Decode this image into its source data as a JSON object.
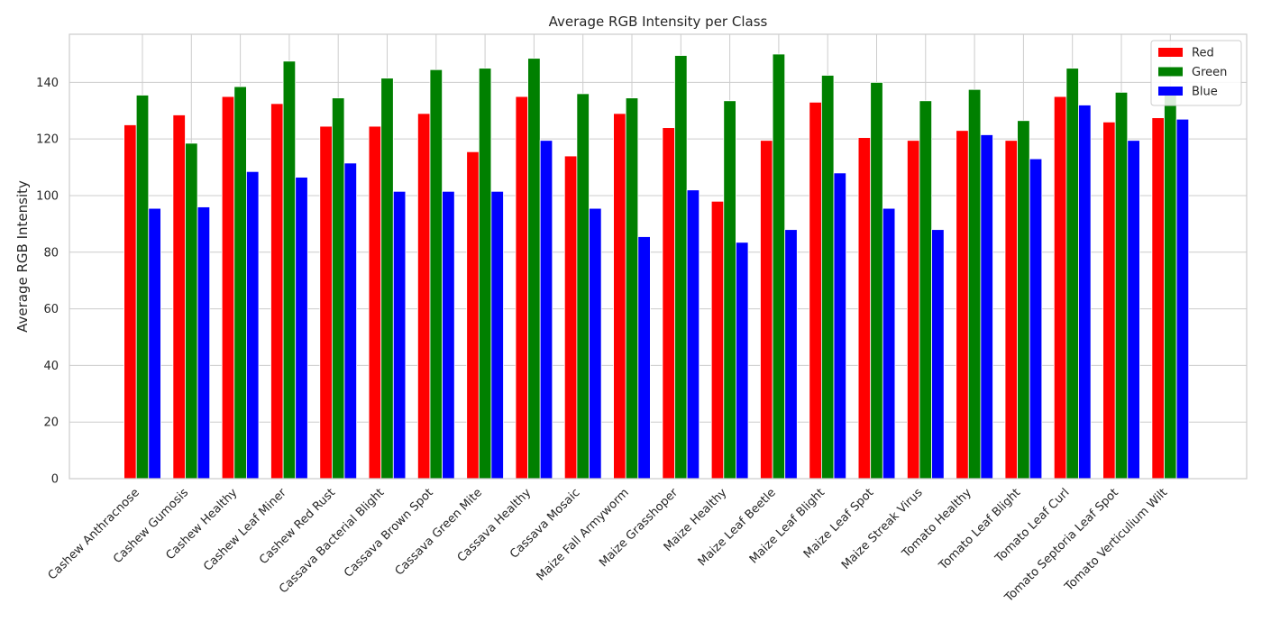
{
  "chart_data": {
    "type": "bar",
    "title": "Average RGB Intensity per Class",
    "xlabel": "",
    "ylabel": "Average RGB Intensity",
    "ylim": [
      0,
      157
    ],
    "yticks": [
      0,
      20,
      40,
      60,
      80,
      100,
      120,
      140
    ],
    "grid": true,
    "legend_position": "top-right",
    "categories": [
      "Cashew Anthracnose",
      "Cashew Gumosis",
      "Cashew Healthy",
      "Cashew Leaf Miner",
      "Cashew Red Rust",
      "Cassava Bacterial Blight",
      "Cassava Brown Spot",
      "Cassava Green Mite",
      "Cassava Healthy",
      "Cassava Mosaic",
      "Maize Fall Armyworm",
      "Maize Grasshoper",
      "Maize Healthy",
      "Maize Leaf Beetle",
      "Maize Leaf Blight",
      "Maize Leaf Spot",
      "Maize Streak Virus",
      "Tomato Healthy",
      "Tomato Leaf Blight",
      "Tomato Leaf Curl",
      "Tomato Septoria Leaf Spot",
      "Tomato Verticulium Wilt"
    ],
    "series": [
      {
        "name": "Red",
        "color": "#ff0000",
        "values": [
          125,
          128.5,
          135,
          132.5,
          124.5,
          124.5,
          129,
          115.5,
          135,
          114,
          129,
          124,
          98,
          119.5,
          133,
          120.5,
          119.5,
          123,
          119.5,
          135,
          126,
          127.5
        ]
      },
      {
        "name": "Green",
        "color": "#008000",
        "values": [
          135.5,
          118.5,
          138.5,
          147.5,
          134.5,
          141.5,
          144.5,
          145,
          148.5,
          136,
          134.5,
          149.5,
          133.5,
          150,
          142.5,
          140,
          133.5,
          137.5,
          126.5,
          145,
          136.5,
          136
        ]
      },
      {
        "name": "Blue",
        "color": "#0000ff",
        "values": [
          95.5,
          96,
          108.5,
          106.5,
          111.5,
          101.5,
          101.5,
          101.5,
          119.5,
          95.5,
          85.5,
          102,
          83.5,
          88,
          108,
          95.5,
          88,
          121.5,
          113,
          132,
          119.5,
          127
        ]
      }
    ]
  }
}
